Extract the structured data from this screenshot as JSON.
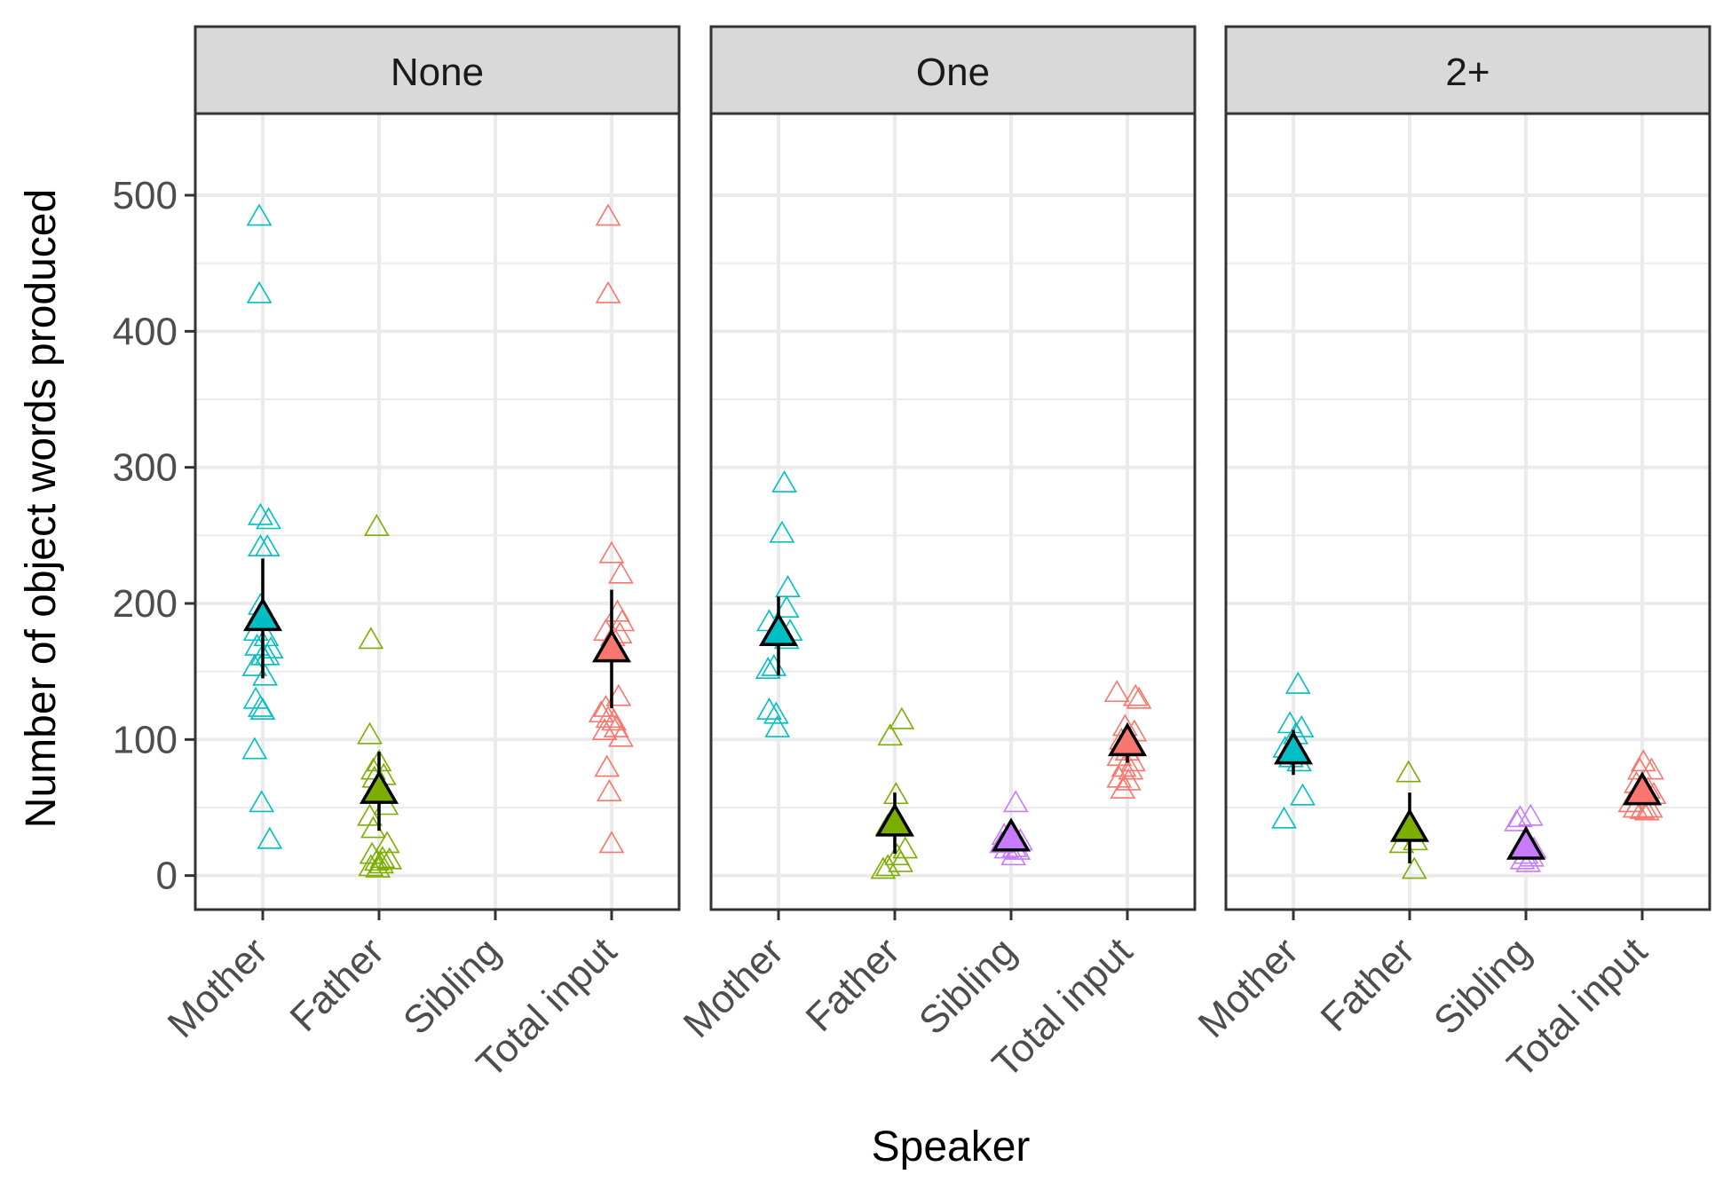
{
  "chart_data": {
    "type": "scatter",
    "facet_variable": "number of siblings",
    "xlabel": "Speaker",
    "ylabel": "Number of object words produced",
    "categories": [
      "Mother",
      "Father",
      "Sibling",
      "Total input"
    ],
    "ylim": [
      -25,
      560
    ],
    "yticks": [
      0,
      100,
      200,
      300,
      400,
      500
    ],
    "grid": true,
    "legend": "none",
    "colors": {
      "Mother": "#00BFC4",
      "Father": "#7CAE00",
      "Sibling": "#C77CFF",
      "Total input": "#F8766D",
      "summary_outline": "#000000",
      "strip_fill": "#D9D9D9",
      "grid": "#EBEBEB",
      "panel_border": "#333333"
    },
    "panels": [
      {
        "strip": "None",
        "points": {
          "Mother": [
            [
              -0.03,
              483
            ],
            [
              -0.03,
              426
            ],
            [
              -0.02,
              263
            ],
            [
              0.05,
              260
            ],
            [
              -0.02,
              240
            ],
            [
              0.04,
              240
            ],
            [
              -0.02,
              197
            ],
            [
              -0.06,
              178
            ],
            [
              0.03,
              174
            ],
            [
              -0.05,
              167
            ],
            [
              0.07,
              165
            ],
            [
              0.0,
              160
            ],
            [
              0.04,
              160
            ],
            [
              -0.07,
              152
            ],
            [
              0.02,
              145
            ],
            [
              -0.06,
              128
            ],
            [
              -0.02,
              122
            ],
            [
              0.0,
              120
            ],
            [
              -0.07,
              91
            ],
            [
              -0.01,
              52
            ],
            [
              0.06,
              25
            ]
          ],
          "Father": [
            [
              -0.02,
              255
            ],
            [
              -0.07,
              172
            ],
            [
              -0.08,
              102
            ],
            [
              0.0,
              82
            ],
            [
              -0.05,
              76
            ],
            [
              0.04,
              72
            ],
            [
              -0.04,
              70
            ],
            [
              0.06,
              50
            ],
            [
              -0.08,
              42
            ],
            [
              -0.05,
              33
            ],
            [
              0.07,
              22
            ],
            [
              -0.06,
              14
            ],
            [
              0.03,
              11
            ],
            [
              -0.02,
              9
            ],
            [
              0.09,
              10
            ],
            [
              -0.07,
              5
            ],
            [
              -0.01,
              4
            ],
            [
              0.02,
              7
            ]
          ],
          "Sibling": [],
          "Total input": [
            [
              -0.03,
              483
            ],
            [
              -0.03,
              426
            ],
            [
              0.0,
              235
            ],
            [
              0.08,
              220
            ],
            [
              0.05,
              192
            ],
            [
              0.09,
              185
            ],
            [
              -0.05,
              178
            ],
            [
              0.07,
              176
            ],
            [
              0.01,
              174
            ],
            [
              0.06,
              130
            ],
            [
              -0.05,
              122
            ],
            [
              -0.09,
              118
            ],
            [
              -0.03,
              114
            ],
            [
              0.02,
              112
            ],
            [
              0.04,
              107
            ],
            [
              -0.06,
              105
            ],
            [
              0.08,
              100
            ],
            [
              -0.04,
              78
            ],
            [
              -0.02,
              60
            ],
            [
              0.0,
              22
            ]
          ]
        },
        "summary": {
          "Mother": {
            "mean": 188,
            "lower": 145,
            "upper": 233
          },
          "Father": {
            "mean": 61,
            "lower": 33,
            "upper": 91
          },
          "Total input": {
            "mean": 165,
            "lower": 123,
            "upper": 210
          }
        }
      },
      {
        "strip": "One",
        "points": {
          "Mother": [
            [
              0.05,
              287
            ],
            [
              0.03,
              250
            ],
            [
              0.08,
              210
            ],
            [
              0.07,
              195
            ],
            [
              -0.08,
              185
            ],
            [
              0.1,
              178
            ],
            [
              0.07,
              172
            ],
            [
              -0.09,
              150
            ],
            [
              -0.04,
              152
            ],
            [
              -0.08,
              120
            ],
            [
              -0.02,
              117
            ],
            [
              -0.01,
              107
            ]
          ],
          "Father": [
            [
              0.06,
              113
            ],
            [
              -0.04,
              101
            ],
            [
              0.01,
              58
            ],
            [
              -0.06,
              35
            ],
            [
              0.09,
              18
            ],
            [
              0.02,
              13
            ],
            [
              0.05,
              8
            ],
            [
              -0.06,
              5
            ],
            [
              -0.1,
              3
            ]
          ],
          "Sibling": [
            [
              0.04,
              52
            ],
            [
              -0.06,
              28
            ],
            [
              0.0,
              25
            ],
            [
              0.08,
              24
            ],
            [
              -0.08,
              22
            ],
            [
              0.03,
              19
            ],
            [
              -0.04,
              18
            ],
            [
              0.06,
              17
            ],
            [
              0.02,
              13
            ]
          ],
          "Total input": [
            [
              -0.09,
              133
            ],
            [
              0.07,
              130
            ],
            [
              0.1,
              128
            ],
            [
              -0.02,
              108
            ],
            [
              0.06,
              104
            ],
            [
              -0.05,
              98
            ],
            [
              0.04,
              93
            ],
            [
              0.0,
              90
            ],
            [
              -0.07,
              86
            ],
            [
              0.05,
              82
            ],
            [
              -0.03,
              78
            ],
            [
              0.03,
              76
            ],
            [
              -0.07,
              70
            ],
            [
              0.01,
              68
            ],
            [
              -0.04,
              62
            ]
          ]
        },
        "summary": {
          "Mother": {
            "mean": 177,
            "lower": 147,
            "upper": 205
          },
          "Father": {
            "mean": 37,
            "lower": 16,
            "upper": 61
          },
          "Sibling": {
            "mean": 26,
            "lower": 22,
            "upper": 30
          },
          "Total input": {
            "mean": 96,
            "lower": 83,
            "upper": 108
          }
        }
      },
      {
        "strip": "2+",
        "points": {
          "Mother": [
            [
              0.04,
              139
            ],
            [
              -0.03,
              110
            ],
            [
              0.07,
              107
            ],
            [
              0.02,
              102
            ],
            [
              -0.07,
              92
            ],
            [
              -0.02,
              85
            ],
            [
              0.05,
              82
            ],
            [
              0.08,
              57
            ],
            [
              -0.08,
              40
            ]
          ],
          "Father": [
            [
              -0.01,
              74
            ],
            [
              0.05,
              24
            ],
            [
              -0.07,
              22
            ],
            [
              0.04,
              3
            ]
          ],
          "Sibling": [
            [
              -0.05,
              41
            ],
            [
              0.04,
              42
            ],
            [
              -0.08,
              38
            ],
            [
              0.07,
              18
            ],
            [
              0.0,
              14
            ],
            [
              -0.03,
              10
            ],
            [
              0.02,
              8
            ],
            [
              0.05,
              12
            ]
          ],
          "Total input": [
            [
              0.01,
              82
            ],
            [
              -0.02,
              76
            ],
            [
              0.08,
              76
            ],
            [
              -0.05,
              66
            ],
            [
              0.05,
              62
            ],
            [
              0.1,
              58
            ],
            [
              -0.1,
              52
            ],
            [
              0.07,
              48
            ],
            [
              0.0,
              47
            ],
            [
              -0.06,
              48
            ],
            [
              0.04,
              46
            ]
          ]
        },
        "summary": {
          "Mother": {
            "mean": 90,
            "lower": 74,
            "upper": 107
          },
          "Father": {
            "mean": 33,
            "lower": 9,
            "upper": 61
          },
          "Sibling": {
            "mean": 20,
            "lower": 15,
            "upper": 25
          },
          "Total input": {
            "mean": 60,
            "lower": 54,
            "upper": 67
          }
        }
      }
    ]
  }
}
